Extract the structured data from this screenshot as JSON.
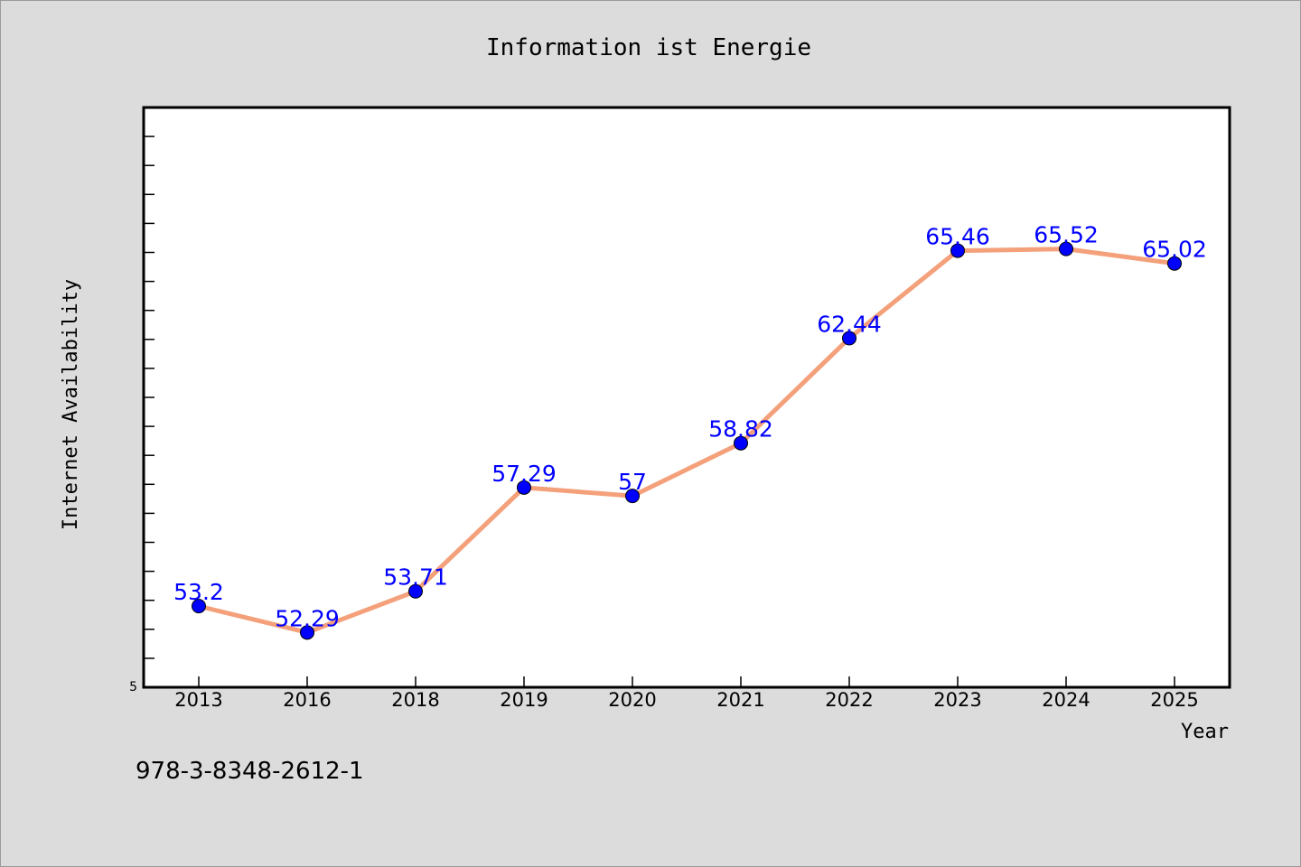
{
  "chart_data": {
    "type": "line",
    "title": "Information ist Energie",
    "xlabel": "Year",
    "ylabel": "Internet Availability",
    "categories": [
      "2013",
      "2016",
      "2018",
      "2019",
      "2020",
      "2021",
      "2022",
      "2023",
      "2024",
      "2025"
    ],
    "series": [
      {
        "values": [
          53.2,
          52.29,
          53.71,
          57.29,
          57,
          58.82,
          62.44,
          65.46,
          65.52,
          65.02
        ],
        "labels": [
          "53.2",
          "52.29",
          "53.71",
          "57.29",
          "57",
          "58.82",
          "62.44",
          "65.46",
          "65.52",
          "65.02"
        ]
      }
    ],
    "ylim": [
      50.4,
      70.4
    ],
    "y_tick_label": "5",
    "grid": false,
    "line_color": "#f4a07a",
    "marker_color": "#0000ff",
    "label_color": "#0000ff",
    "plot_background": "#ffffff",
    "figure_background": "#dcdcdc"
  },
  "footer_text": "978-3-8348-2612-1"
}
